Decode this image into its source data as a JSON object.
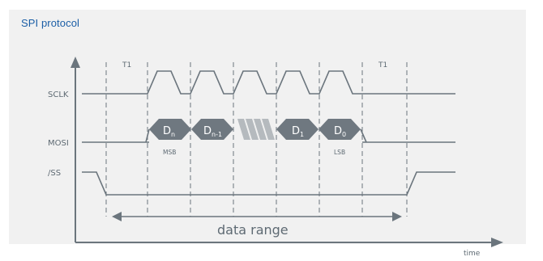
{
  "title": "SPI protocol",
  "signals": {
    "sclk": "SCLK",
    "mosi": "MOSI",
    "ss": "/SS"
  },
  "timing": {
    "t1_left": "T1",
    "t1_right": "T1"
  },
  "data_bits": {
    "dn": {
      "main": "D",
      "sub": "n"
    },
    "dn1": {
      "main": "D",
      "sub": "n-1"
    },
    "d1": {
      "main": "D",
      "sub": "1"
    },
    "d0": {
      "main": "D",
      "sub": "0"
    }
  },
  "bit_labels": {
    "msb": "MSB",
    "lsb": "LSB"
  },
  "range_label": "data range",
  "axis": {
    "x_label": "time"
  },
  "colors": {
    "line": "#6b757d",
    "bit_fill": "#6f7880",
    "title": "#1b5ea6",
    "panel": "#f1f1f1"
  }
}
